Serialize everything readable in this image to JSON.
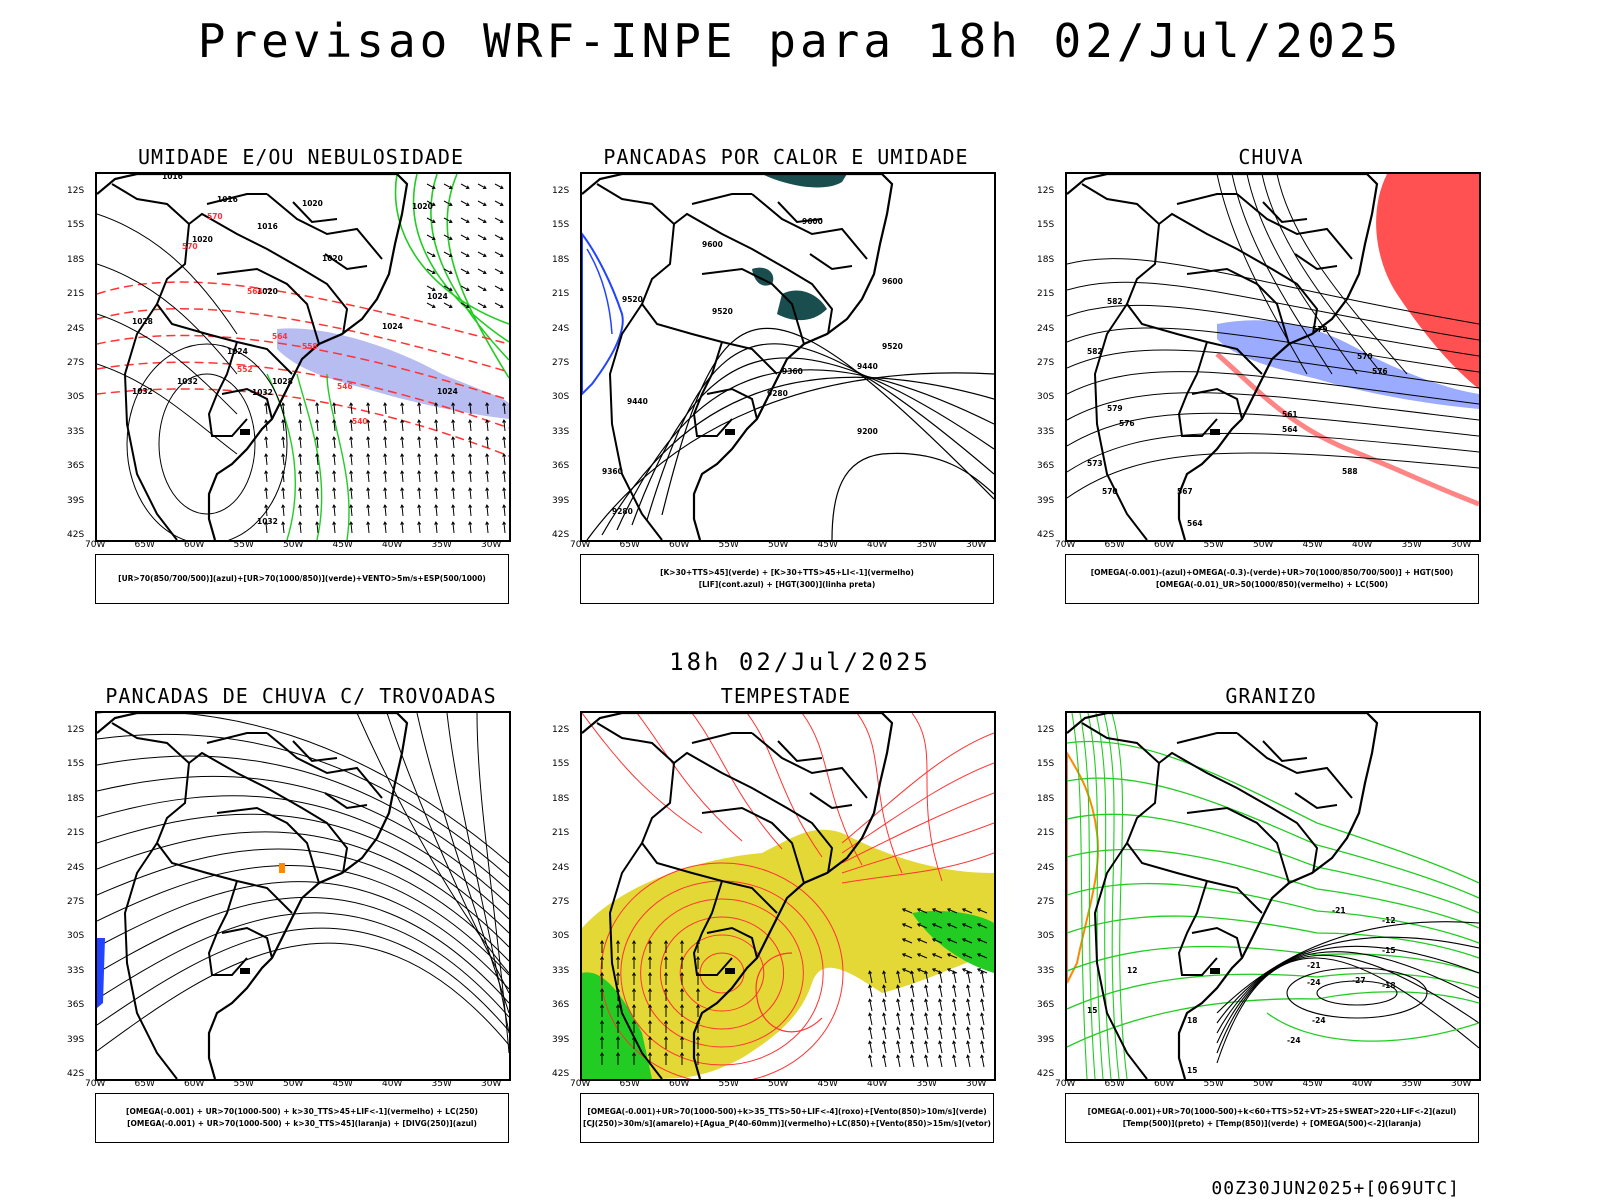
{
  "title": "Previsao WRF-INPE  para 18h 02/Jul/2025",
  "subtitle": "18h 02/Jul/2025",
  "run_info": "00Z30JUN2025+[069UTC]",
  "lat_ticks": [
    "12S",
    "15S",
    "18S",
    "21S",
    "24S",
    "27S",
    "30S",
    "33S",
    "36S",
    "39S",
    "42S"
  ],
  "lon_ticks": [
    "70W",
    "65W",
    "60W",
    "55W",
    "50W",
    "45W",
    "40W",
    "35W",
    "30W"
  ],
  "panels": [
    {
      "title": "UMIDADE E/OU NEBULOSIDADE",
      "legend": [
        "[UR>70(850/700/500)](azul)+[UR>70(1000/850)](verde)+VENTO>5m/s+ESP(500/1000)"
      ],
      "labels": [
        "1016",
        "1016",
        "1016",
        "1020",
        "1020",
        "1020",
        "1020",
        "1020",
        "1024",
        "1024",
        "1024",
        "1024",
        "1028",
        "1028",
        "1032",
        "1032",
        "1032",
        "1032",
        "570",
        "570",
        "564",
        "564",
        "558",
        "552",
        "546",
        "540"
      ]
    },
    {
      "title": "PANCADAS POR CALOR E UMIDADE",
      "legend": [
        "[K>30+TTS>45](verde) + [K>30+TTS>45+LI<-1](vermelho)",
        "[LIF](cont.azul) + [HGT(300)](linha preta)"
      ],
      "labels": [
        "9600",
        "9600",
        "9600",
        "9520",
        "9520",
        "9520",
        "9440",
        "9440",
        "9360",
        "9360",
        "9280",
        "9280",
        "9200"
      ]
    },
    {
      "title": "CHUVA",
      "legend": [
        "[OMEGA(-0.001)-(azul)+OMEGA(-0.3)-(verde)+UR>70(1000/850/700/500)] + HGT(500)",
        "[OMEGA(-0.01)_UR>50(1000/850)(vermelho) + LC(500)"
      ],
      "labels": [
        "582",
        "582",
        "579",
        "576",
        "573",
        "570",
        "567",
        "564",
        "561",
        "564",
        "570",
        "576",
        "579",
        "588"
      ]
    },
    {
      "title": "PANCADAS DE CHUVA C/ TROVOADAS",
      "legend": [
        "[OMEGA(-0.001) + UR>70(1000-500) + k>30_TTS>45+LIF<-1](vermelho) + LC(250)",
        "[OMEGA(-0.001) + UR>70(1000-500) + k>30_TTS>45](laranja) + [DIVG(250)](azul)"
      ],
      "labels": []
    },
    {
      "title": "TEMPESTADE",
      "legend": [
        "[OMEGA(-0.001)+UR>70(1000-500)+k>35_TTS>50+LIF<-4](roxo)+[Vento(850)>10m/s](verde)",
        "[CJ(250)>30m/s](amarelo)+[Agua_P(40-60mm)](vermelho)+LC(850)+[Vento(850)>15m/s](vetor)"
      ],
      "labels": []
    },
    {
      "title": "GRANIZO",
      "legend": [
        "[OMEGA(-0.001)+UR>70(1000-500)+k<60+TTS>52+VT>25+SWEAT>220+LIF<-2](azul)",
        "[Temp(500)](preto) + [Temp(850)](verde) + [OMEGA(500)<-2](laranja)"
      ],
      "labels": [
        "12",
        "15",
        "18",
        "-12",
        "-15",
        "-18",
        "-21",
        "-24",
        "-27",
        "-24",
        "-24",
        "-21",
        "15",
        "12"
      ]
    }
  ],
  "colors": {
    "contour": "#000000",
    "red": "#ff3333",
    "green": "#22cc22",
    "blue": "#2244ff",
    "lavender": "#aab0ee",
    "teal": "#1a4d4d",
    "yellow": "#e3d836",
    "orange": "#ff8800"
  },
  "chart_data": [
    {
      "type": "map",
      "panel": "UMIDADE E/OU NEBULOSIDADE",
      "isobars_hpa": [
        1016,
        1020,
        1024,
        1028,
        1032
      ],
      "thickness_dam": [
        540,
        546,
        552,
        558,
        564,
        570
      ]
    },
    {
      "type": "map",
      "panel": "PANCADAS POR CALOR E UMIDADE",
      "hgt300_m": [
        9200,
        9280,
        9360,
        9440,
        9520,
        9600
      ]
    },
    {
      "type": "map",
      "panel": "CHUVA",
      "hgt500_dam": [
        561,
        564,
        567,
        570,
        573,
        576,
        579,
        582,
        588
      ]
    },
    {
      "type": "map",
      "panel": "PANCADAS DE CHUVA C/ TROVOADAS",
      "streamlines": "LC(250)"
    },
    {
      "type": "map",
      "panel": "TEMPESTADE",
      "streamlines": "LC(850)"
    },
    {
      "type": "map",
      "panel": "GRANIZO",
      "temp500_c": [
        -12,
        -15,
        -18,
        -21,
        -24,
        -27
      ],
      "temp850_c": [
        12,
        15,
        18
      ]
    }
  ]
}
